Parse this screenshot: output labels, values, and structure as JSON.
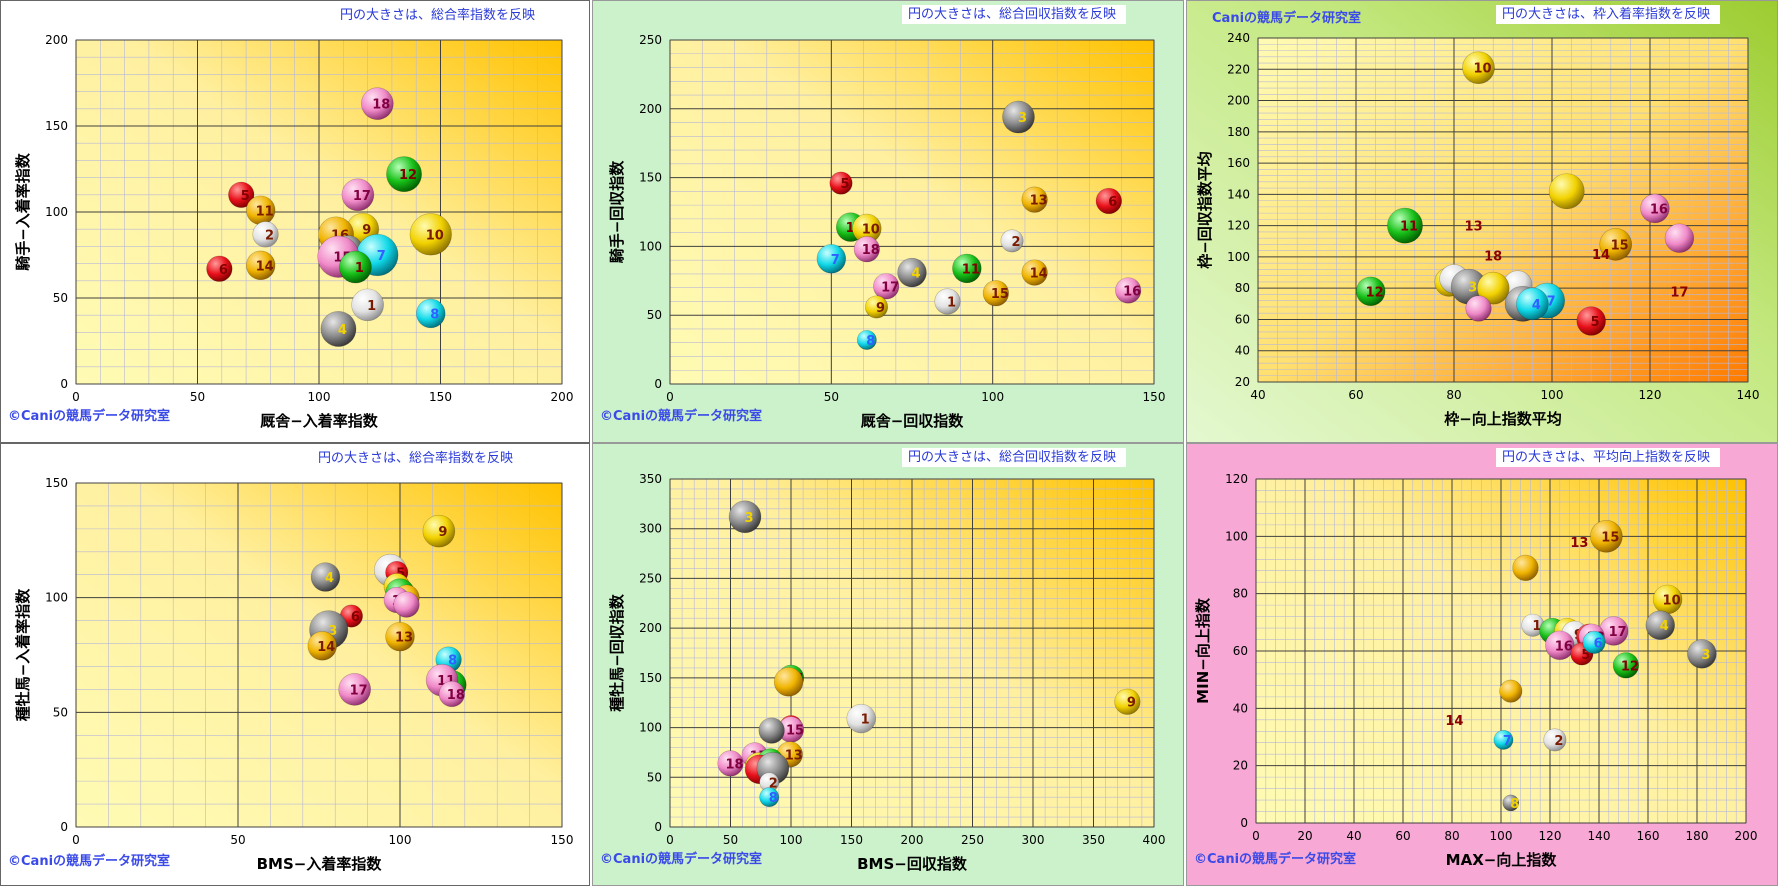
{
  "watermark": "Caniの競馬データ研究室",
  "copyright_watermark": "©Caniの競馬データ研究室",
  "colors": {
    "red": "#e8101a",
    "yellow": "#f2d200",
    "gold": "#f0b400",
    "white": "#f4f4f4",
    "gray": "#8a8a8a",
    "green": "#18c018",
    "cyan": "#10d8e8",
    "pink": "#f08ac8",
    "panel_light": "#ffffff",
    "panel_green": "#ccf2cc",
    "panel_pink": "#f7a8d4"
  },
  "chart_data": [
    {
      "type": "scatter",
      "caption": "円の大きさは、総合率指数を反映",
      "watermark": "©Caniの競馬データ研究室",
      "xlabel": "厩舎−入着率指数",
      "ylabel": "騎手−入着率指数",
      "xlim": [
        0,
        200
      ],
      "ylim": [
        0,
        200
      ],
      "xticks": [
        0,
        50,
        100,
        150,
        200
      ],
      "yticks": [
        0,
        50,
        100,
        150,
        200
      ],
      "grid": true,
      "legend": "none",
      "points": [
        {
          "label": "18",
          "x": 124,
          "y": 163,
          "size": 1.0,
          "color": "pink"
        },
        {
          "label": "12",
          "x": 135,
          "y": 122,
          "size": 1.1,
          "color": "green"
        },
        {
          "label": "17",
          "x": 116,
          "y": 110,
          "size": 1.0,
          "color": "pink"
        },
        {
          "label": "5",
          "x": 68,
          "y": 110,
          "size": 0.8,
          "color": "red"
        },
        {
          "label": "11",
          "x": 76,
          "y": 101,
          "size": 0.9,
          "color": "gold"
        },
        {
          "label": "13",
          "x": 78,
          "y": 90,
          "size": 0.0,
          "color": "red"
        },
        {
          "label": "2",
          "x": 78,
          "y": 87,
          "size": 0.8,
          "color": "white"
        },
        {
          "label": "9",
          "x": 118,
          "y": 90,
          "size": 1.0,
          "color": "yellow"
        },
        {
          "label": "10",
          "x": 146,
          "y": 87,
          "size": 1.3,
          "color": "yellow"
        },
        {
          "label": "16",
          "x": 107,
          "y": 87,
          "size": 1.1,
          "color": "gold"
        },
        {
          "label": "3",
          "x": 112,
          "y": 78,
          "size": 0.9,
          "color": "gray"
        },
        {
          "label": "7",
          "x": 124,
          "y": 75,
          "size": 1.3,
          "color": "cyan"
        },
        {
          "label": "15",
          "x": 108,
          "y": 74,
          "size": 1.3,
          "color": "pink"
        },
        {
          "label": "1",
          "x": 115,
          "y": 68,
          "size": 1.0,
          "color": "green"
        },
        {
          "label": "6",
          "x": 59,
          "y": 67,
          "size": 0.8,
          "color": "red"
        },
        {
          "label": "14",
          "x": 76,
          "y": 69,
          "size": 0.9,
          "color": "gold"
        },
        {
          "label": "1",
          "x": 120,
          "y": 46,
          "size": 1.0,
          "color": "white"
        },
        {
          "label": "8",
          "x": 146,
          "y": 41,
          "size": 0.9,
          "color": "cyan"
        },
        {
          "label": "4",
          "x": 108,
          "y": 32,
          "size": 1.1,
          "color": "gray"
        }
      ]
    },
    {
      "type": "scatter",
      "caption": "円の大きさは、総合回収指数を反映",
      "watermark": "©Caniの競馬データ研究室",
      "xlabel": "厩舎−回収指数",
      "ylabel": "騎手−回収指数",
      "xlim": [
        0,
        150
      ],
      "ylim": [
        0,
        250
      ],
      "xticks": [
        0,
        50,
        100,
        150
      ],
      "yticks": [
        0,
        50,
        100,
        150,
        200,
        250
      ],
      "grid": true,
      "legend": "none",
      "points": [
        {
          "label": "3",
          "x": 108,
          "y": 194,
          "size": 1.0,
          "color": "gray"
        },
        {
          "label": "5",
          "x": 53,
          "y": 146,
          "size": 0.7,
          "color": "red"
        },
        {
          "label": "13",
          "x": 113,
          "y": 134,
          "size": 0.8,
          "color": "gold"
        },
        {
          "label": "6",
          "x": 136,
          "y": 133,
          "size": 0.8,
          "color": "red"
        },
        {
          "label": "12",
          "x": 56,
          "y": 114,
          "size": 0.9,
          "color": "green"
        },
        {
          "label": "10",
          "x": 61,
          "y": 113,
          "size": 0.9,
          "color": "yellow"
        },
        {
          "label": "2",
          "x": 106,
          "y": 104,
          "size": 0.7,
          "color": "white"
        },
        {
          "label": "18",
          "x": 61,
          "y": 98,
          "size": 0.8,
          "color": "pink"
        },
        {
          "label": "7",
          "x": 50,
          "y": 91,
          "size": 0.9,
          "color": "cyan"
        },
        {
          "label": "11",
          "x": 92,
          "y": 84,
          "size": 0.9,
          "color": "green"
        },
        {
          "label": "4",
          "x": 75,
          "y": 81,
          "size": 0.9,
          "color": "gray"
        },
        {
          "label": "14",
          "x": 113,
          "y": 81,
          "size": 0.8,
          "color": "gold"
        },
        {
          "label": "17",
          "x": 67,
          "y": 71,
          "size": 0.8,
          "color": "pink"
        },
        {
          "label": "16",
          "x": 142,
          "y": 68,
          "size": 0.8,
          "color": "pink"
        },
        {
          "label": "15",
          "x": 101,
          "y": 66,
          "size": 0.8,
          "color": "gold"
        },
        {
          "label": "1",
          "x": 86,
          "y": 60,
          "size": 0.8,
          "color": "white"
        },
        {
          "label": "9",
          "x": 64,
          "y": 56,
          "size": 0.7,
          "color": "yellow"
        },
        {
          "label": "8",
          "x": 61,
          "y": 32,
          "size": 0.6,
          "color": "cyan"
        }
      ]
    },
    {
      "type": "scatter",
      "caption": "円の大きさは、枠入着率指数を反映",
      "watermark": "Caniの競馬データ研究室",
      "xlabel": "枠−向上指数平均",
      "ylabel": "枠−回収指数平均",
      "xlim": [
        40,
        140
      ],
      "ylim": [
        20,
        240
      ],
      "xticks": [
        40,
        60,
        80,
        100,
        120,
        140
      ],
      "yticks": [
        20,
        40,
        60,
        80,
        100,
        120,
        140,
        160,
        180,
        200,
        220,
        240
      ],
      "grid": true,
      "legend": "none",
      "points": [
        {
          "label": "10",
          "x": 85,
          "y": 221,
          "size": 1.0,
          "color": "yellow"
        },
        {
          "label": "",
          "x": 103,
          "y": 142,
          "size": 1.1,
          "color": "yellow"
        },
        {
          "label": "16",
          "x": 121,
          "y": 131,
          "size": 0.9,
          "color": "pink"
        },
        {
          "label": "11",
          "x": 70,
          "y": 120,
          "size": 1.1,
          "color": "green"
        },
        {
          "label": "13",
          "x": 84,
          "y": 120,
          "size": 0.0,
          "color": "red"
        },
        {
          "label": "",
          "x": 126,
          "y": 112,
          "size": 0.9,
          "color": "pink"
        },
        {
          "label": "15",
          "x": 113,
          "y": 108,
          "size": 1.0,
          "color": "gold"
        },
        {
          "label": "14",
          "x": 110,
          "y": 102,
          "size": 0.0,
          "color": "red"
        },
        {
          "label": "18",
          "x": 88,
          "y": 101,
          "size": 0.0,
          "color": "red"
        },
        {
          "label": "9",
          "x": 79,
          "y": 84,
          "size": 0.9,
          "color": "yellow"
        },
        {
          "label": "",
          "x": 80,
          "y": 86,
          "size": 0.9,
          "color": "white"
        },
        {
          "label": "",
          "x": 93,
          "y": 82,
          "size": 0.9,
          "color": "white"
        },
        {
          "label": "3",
          "x": 83,
          "y": 81,
          "size": 1.1,
          "color": "gray"
        },
        {
          "label": "",
          "x": 88,
          "y": 80,
          "size": 1.0,
          "color": "yellow"
        },
        {
          "label": "12",
          "x": 63,
          "y": 78,
          "size": 0.9,
          "color": "green"
        },
        {
          "label": "17",
          "x": 126,
          "y": 78,
          "size": 0.0,
          "color": "red"
        },
        {
          "label": "8",
          "x": 94,
          "y": 70,
          "size": 1.1,
          "color": "gray"
        },
        {
          "label": "7",
          "x": 99,
          "y": 72,
          "size": 1.1,
          "color": "cyan"
        },
        {
          "label": "4",
          "x": 96,
          "y": 70,
          "size": 1.0,
          "color": "cyan"
        },
        {
          "label": "",
          "x": 85,
          "y": 67,
          "size": 0.8,
          "color": "pink"
        },
        {
          "label": "5",
          "x": 108,
          "y": 59,
          "size": 0.9,
          "color": "red"
        }
      ]
    },
    {
      "type": "scatter",
      "caption": "円の大きさは、総合率指数を反映",
      "watermark": "©Caniの競馬データ研究室",
      "xlabel": "BMS−入着率指数",
      "ylabel": "種牡馬−入着率指数",
      "xlim": [
        0,
        150
      ],
      "ylim": [
        0,
        150
      ],
      "xticks": [
        0,
        50,
        100,
        150
      ],
      "yticks": [
        0,
        50,
        100,
        150
      ],
      "grid": true,
      "legend": "none",
      "points": [
        {
          "label": "9",
          "x": 112,
          "y": 129,
          "size": 1.0,
          "color": "yellow"
        },
        {
          "label": "",
          "x": 97,
          "y": 112,
          "size": 1.0,
          "color": "white"
        },
        {
          "label": "5",
          "x": 99,
          "y": 111,
          "size": 0.7,
          "color": "red"
        },
        {
          "label": "4",
          "x": 77,
          "y": 109,
          "size": 0.9,
          "color": "gray"
        },
        {
          "label": "",
          "x": 99,
          "y": 105,
          "size": 0.8,
          "color": "yellow"
        },
        {
          "label": "",
          "x": 100,
          "y": 102,
          "size": 0.9,
          "color": "green"
        },
        {
          "label": "",
          "x": 102,
          "y": 100,
          "size": 0.8,
          "color": "gold"
        },
        {
          "label": "12",
          "x": 99,
          "y": 99,
          "size": 0.8,
          "color": "pink"
        },
        {
          "label": "",
          "x": 102,
          "y": 97,
          "size": 0.8,
          "color": "pink"
        },
        {
          "label": "6",
          "x": 85,
          "y": 92,
          "size": 0.7,
          "color": "red"
        },
        {
          "label": "3",
          "x": 78,
          "y": 86,
          "size": 1.2,
          "color": "gray"
        },
        {
          "label": "13",
          "x": 100,
          "y": 83,
          "size": 0.9,
          "color": "gold"
        },
        {
          "label": "14",
          "x": 76,
          "y": 79,
          "size": 0.9,
          "color": "gold"
        },
        {
          "label": "8",
          "x": 115,
          "y": 73,
          "size": 0.8,
          "color": "cyan"
        },
        {
          "label": "",
          "x": 116,
          "y": 62,
          "size": 0.9,
          "color": "green"
        },
        {
          "label": "11",
          "x": 113,
          "y": 64,
          "size": 1.0,
          "color": "pink"
        },
        {
          "label": "18",
          "x": 116,
          "y": 58,
          "size": 0.8,
          "color": "pink"
        },
        {
          "label": "17",
          "x": 86,
          "y": 60,
          "size": 1.0,
          "color": "pink"
        }
      ]
    },
    {
      "type": "scatter",
      "caption": "円の大きさは、総合回収指数を反映",
      "watermark": "©Caniの競馬データ研究室",
      "xlabel": "BMS−回収指数",
      "ylabel": "種牡馬−回収指数",
      "xlim": [
        0,
        400
      ],
      "ylim": [
        0,
        350
      ],
      "xticks": [
        0,
        50,
        100,
        150,
        200,
        250,
        300,
        350,
        400
      ],
      "yticks": [
        0,
        50,
        100,
        150,
        200,
        250,
        300,
        350
      ],
      "grid": true,
      "legend": "none",
      "points": [
        {
          "label": "3",
          "x": 62,
          "y": 312,
          "size": 1.0,
          "color": "gray"
        },
        {
          "label": "14",
          "x": 100,
          "y": 150,
          "size": 0.8,
          "color": "green"
        },
        {
          "label": "",
          "x": 98,
          "y": 146,
          "size": 0.9,
          "color": "gold"
        },
        {
          "label": "9",
          "x": 378,
          "y": 126,
          "size": 0.8,
          "color": "yellow"
        },
        {
          "label": "1",
          "x": 158,
          "y": 109,
          "size": 0.9,
          "color": "white"
        },
        {
          "label": "5",
          "x": 100,
          "y": 101,
          "size": 0.7,
          "color": "red"
        },
        {
          "label": "15",
          "x": 100,
          "y": 98,
          "size": 0.8,
          "color": "pink"
        },
        {
          "label": "",
          "x": 84,
          "y": 97,
          "size": 0.8,
          "color": "gray"
        },
        {
          "label": "13",
          "x": 99,
          "y": 73,
          "size": 0.8,
          "color": "gold"
        },
        {
          "label": "17",
          "x": 70,
          "y": 72,
          "size": 0.8,
          "color": "pink"
        },
        {
          "label": "18",
          "x": 50,
          "y": 64,
          "size": 0.8,
          "color": "pink"
        },
        {
          "label": "",
          "x": 73,
          "y": 62,
          "size": 0.8,
          "color": "yellow"
        },
        {
          "label": "",
          "x": 83,
          "y": 66,
          "size": 0.8,
          "color": "green"
        },
        {
          "label": "7",
          "x": 80,
          "y": 60,
          "size": 0.8,
          "color": "cyan"
        },
        {
          "label": "",
          "x": 74,
          "y": 58,
          "size": 0.9,
          "color": "red"
        },
        {
          "label": "",
          "x": 85,
          "y": 59,
          "size": 1.0,
          "color": "gray"
        },
        {
          "label": "2",
          "x": 82,
          "y": 45,
          "size": 0.6,
          "color": "white"
        },
        {
          "label": "8",
          "x": 82,
          "y": 30,
          "size": 0.6,
          "color": "cyan"
        }
      ]
    },
    {
      "type": "scatter",
      "caption": "円の大きさは、平均向上指数を反映",
      "watermark": "©Caniの競馬データ研究室",
      "xlabel": "MAX−向上指数",
      "ylabel": "MIN−向上指数",
      "xlim": [
        0,
        200
      ],
      "ylim": [
        0,
        120
      ],
      "xticks": [
        0,
        20,
        40,
        60,
        80,
        100,
        120,
        140,
        160,
        180,
        200
      ],
      "yticks": [
        0,
        20,
        40,
        60,
        80,
        100,
        120
      ],
      "grid": true,
      "legend": "none",
      "points": [
        {
          "label": "15",
          "x": 143,
          "y": 100,
          "size": 1.0,
          "color": "gold"
        },
        {
          "label": "13",
          "x": 132,
          "y": 98,
          "size": 0.0,
          "color": "red"
        },
        {
          "label": "",
          "x": 110,
          "y": 89,
          "size": 0.8,
          "color": "gold"
        },
        {
          "label": "10",
          "x": 168,
          "y": 78,
          "size": 0.9,
          "color": "yellow"
        },
        {
          "label": "4",
          "x": 165,
          "y": 69,
          "size": 0.9,
          "color": "gray"
        },
        {
          "label": "1",
          "x": 113,
          "y": 69,
          "size": 0.7,
          "color": "white"
        },
        {
          "label": "17",
          "x": 146,
          "y": 67,
          "size": 0.9,
          "color": "pink"
        },
        {
          "label": "",
          "x": 121,
          "y": 67,
          "size": 0.8,
          "color": "green"
        },
        {
          "label": "",
          "x": 127,
          "y": 67,
          "size": 0.8,
          "color": "yellow"
        },
        {
          "label": "9",
          "x": 130,
          "y": 66,
          "size": 0.8,
          "color": "white"
        },
        {
          "label": "",
          "x": 136,
          "y": 65,
          "size": 0.8,
          "color": "red"
        },
        {
          "label": "18",
          "x": 137,
          "y": 65,
          "size": 0.8,
          "color": "pink"
        },
        {
          "label": "16",
          "x": 124,
          "y": 62,
          "size": 0.9,
          "color": "pink"
        },
        {
          "label": "3",
          "x": 182,
          "y": 59,
          "size": 0.9,
          "color": "gray"
        },
        {
          "label": "5",
          "x": 133,
          "y": 59,
          "size": 0.7,
          "color": "red"
        },
        {
          "label": "6",
          "x": 138,
          "y": 63,
          "size": 0.7,
          "color": "cyan"
        },
        {
          "label": "12",
          "x": 151,
          "y": 55,
          "size": 0.8,
          "color": "green"
        },
        {
          "label": "",
          "x": 104,
          "y": 46,
          "size": 0.7,
          "color": "gold"
        },
        {
          "label": "7",
          "x": 101,
          "y": 29,
          "size": 0.6,
          "color": "cyan"
        },
        {
          "label": "2",
          "x": 122,
          "y": 29,
          "size": 0.7,
          "color": "white"
        },
        {
          "label": "14",
          "x": 81,
          "y": 36,
          "size": 0.0,
          "color": "red"
        },
        {
          "label": "8",
          "x": 104,
          "y": 7,
          "size": 0.5,
          "color": "gray"
        }
      ]
    }
  ]
}
